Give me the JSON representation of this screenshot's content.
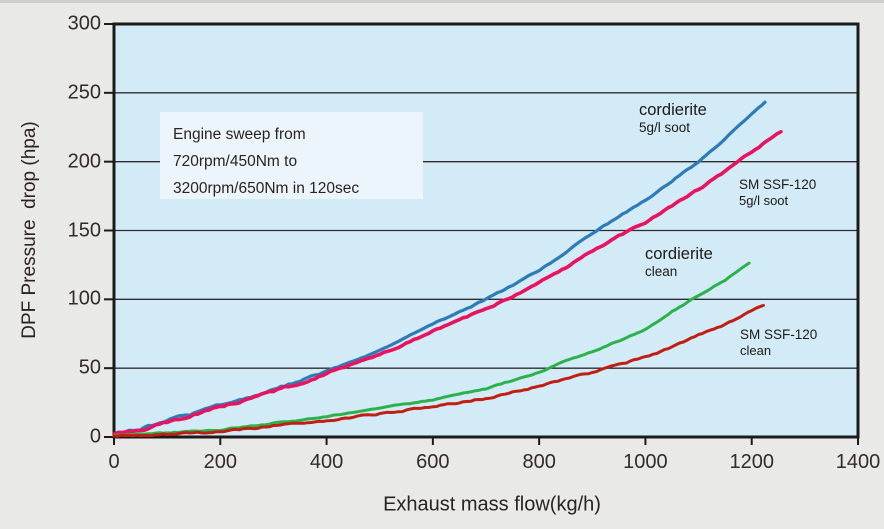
{
  "chart_data": {
    "type": "line",
    "xlabel": "Exhaust mass flow(kg/h)",
    "ylabel": "DPF Pressure  drop (hpa)",
    "xlim": [
      0,
      1400
    ],
    "ylim": [
      0,
      300
    ],
    "x_ticks": [
      0,
      200,
      400,
      600,
      800,
      1000,
      1200,
      1400
    ],
    "y_ticks": [
      0,
      50,
      100,
      150,
      200,
      250,
      300
    ],
    "grid": "horizontal",
    "legend_position": "inline-annotations",
    "plot_bg": "#d3eaf7",
    "frame_color": "#1b1b1b",
    "grid_color": "#2e2e2e",
    "annotation_lines": [
      "Engine sweep from",
      "720rpm/450Nm to",
      "3200rpm/650Nm in 120sec"
    ],
    "series": [
      {
        "name": "cordierite 5g/l soot",
        "label": "cordierite",
        "sublabel": "5g/l soot",
        "color": "#2d7cb8",
        "points": [
          [
            0,
            2
          ],
          [
            50,
            6
          ],
          [
            100,
            12
          ],
          [
            150,
            17
          ],
          [
            200,
            23
          ],
          [
            250,
            28
          ],
          [
            300,
            34
          ],
          [
            350,
            41
          ],
          [
            400,
            48
          ],
          [
            450,
            55
          ],
          [
            500,
            63
          ],
          [
            550,
            72
          ],
          [
            600,
            82
          ],
          [
            650,
            91
          ],
          [
            700,
            100
          ],
          [
            750,
            110
          ],
          [
            800,
            121
          ],
          [
            850,
            134
          ],
          [
            900,
            148
          ],
          [
            950,
            160
          ],
          [
            1000,
            172
          ],
          [
            1050,
            186
          ],
          [
            1100,
            200
          ],
          [
            1150,
            217
          ],
          [
            1200,
            235
          ],
          [
            1225,
            243
          ]
        ]
      },
      {
        "name": "SM SSF-120 5g/l soot",
        "label": "SM SSF-120",
        "sublabel": "5g/l soot",
        "color": "#e8145f",
        "points": [
          [
            0,
            2
          ],
          [
            50,
            5
          ],
          [
            100,
            11
          ],
          [
            150,
            16
          ],
          [
            200,
            22
          ],
          [
            250,
            27
          ],
          [
            300,
            33
          ],
          [
            350,
            39
          ],
          [
            400,
            46
          ],
          [
            450,
            53
          ],
          [
            500,
            60
          ],
          [
            550,
            68
          ],
          [
            600,
            77
          ],
          [
            650,
            85
          ],
          [
            700,
            93
          ],
          [
            750,
            102
          ],
          [
            800,
            112
          ],
          [
            850,
            123
          ],
          [
            900,
            135
          ],
          [
            950,
            146
          ],
          [
            1000,
            156
          ],
          [
            1050,
            168
          ],
          [
            1100,
            180
          ],
          [
            1150,
            193
          ],
          [
            1200,
            207
          ],
          [
            1255,
            222
          ]
        ]
      },
      {
        "name": "cordierite clean",
        "label": "cordierite",
        "sublabel": "clean",
        "color": "#2bb24a",
        "points": [
          [
            0,
            1
          ],
          [
            100,
            3
          ],
          [
            200,
            5
          ],
          [
            300,
            10
          ],
          [
            400,
            15
          ],
          [
            500,
            21
          ],
          [
            600,
            27
          ],
          [
            700,
            35
          ],
          [
            800,
            47
          ],
          [
            850,
            55
          ],
          [
            900,
            62
          ],
          [
            950,
            70
          ],
          [
            1000,
            78
          ],
          [
            1050,
            91
          ],
          [
            1100,
            103
          ],
          [
            1150,
            114
          ],
          [
            1195,
            126
          ]
        ]
      },
      {
        "name": "SM SSF-120 clean",
        "label": "SM SSF-120",
        "sublabel": "clean",
        "color": "#c01f12",
        "points": [
          [
            0,
            1
          ],
          [
            100,
            2
          ],
          [
            200,
            4
          ],
          [
            300,
            8
          ],
          [
            400,
            12
          ],
          [
            500,
            17
          ],
          [
            600,
            22
          ],
          [
            700,
            28
          ],
          [
            800,
            37
          ],
          [
            900,
            47
          ],
          [
            1000,
            58
          ],
          [
            1050,
            65
          ],
          [
            1100,
            74
          ],
          [
            1150,
            82
          ],
          [
            1200,
            92
          ],
          [
            1222,
            96
          ]
        ]
      }
    ]
  }
}
